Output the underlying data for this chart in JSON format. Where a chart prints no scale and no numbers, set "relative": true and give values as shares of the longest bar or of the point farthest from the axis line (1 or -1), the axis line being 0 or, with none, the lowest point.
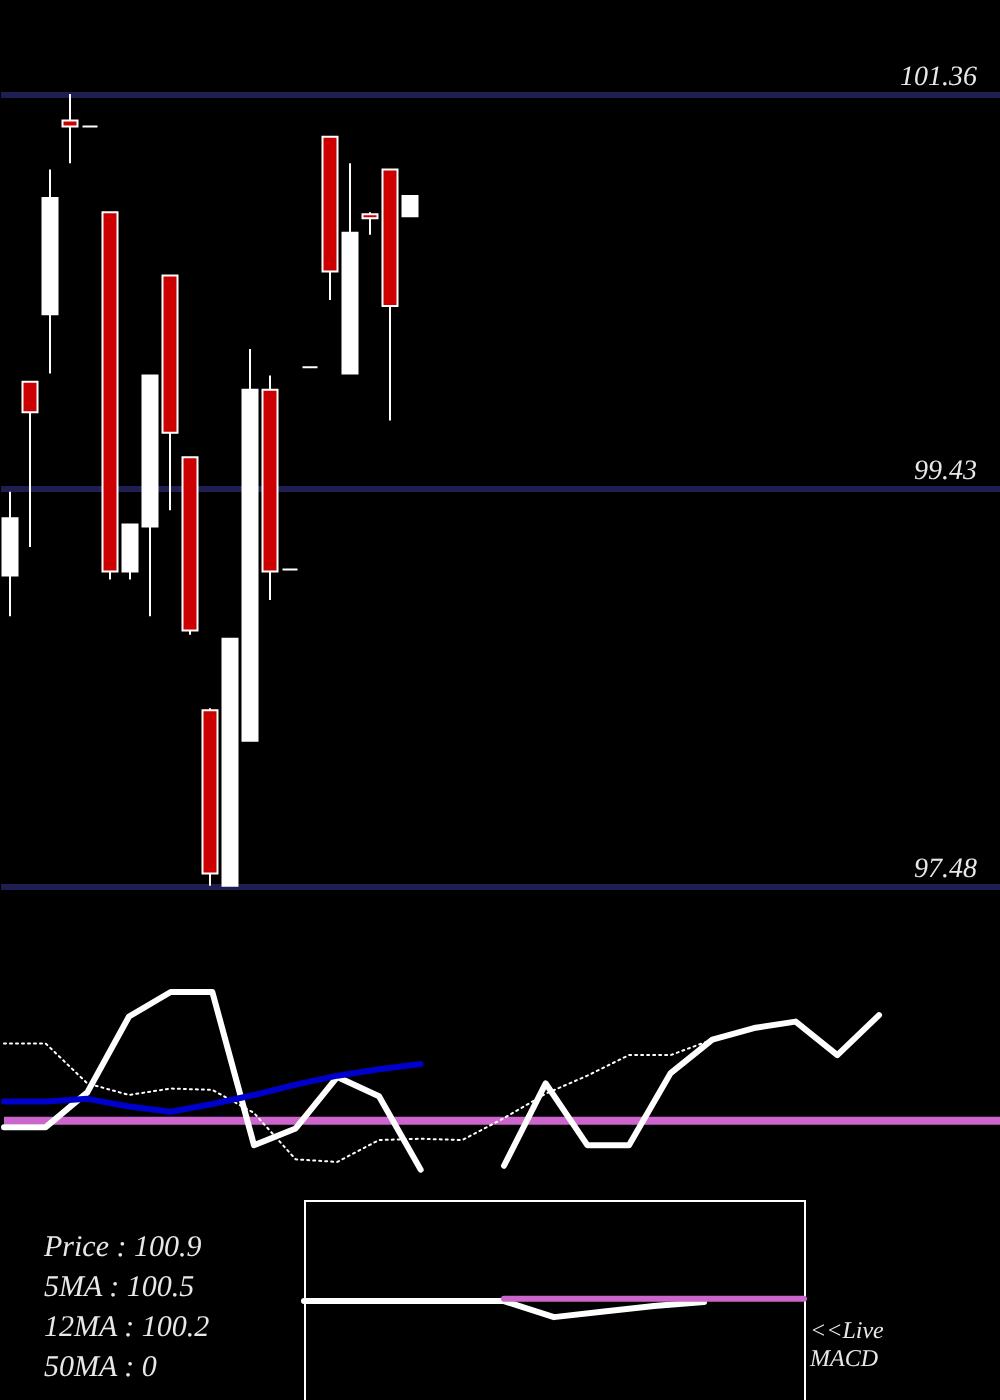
{
  "chart_data": [
    {
      "type": "candlestick",
      "categories": [
        null,
        null,
        null,
        null,
        null,
        null,
        null,
        null,
        null,
        null,
        null,
        null,
        null,
        null,
        null,
        null,
        null,
        null,
        null,
        null,
        null,
        null,
        null,
        null,
        null,
        null,
        null,
        null,
        null,
        null,
        null,
        null,
        null,
        null,
        null,
        null,
        null,
        null,
        null,
        null,
        null,
        null,
        null,
        null,
        null,
        null,
        null,
        null,
        null,
        null
      ],
      "ohlc": [
        [
          99.0,
          99.41,
          98.8,
          99.28
        ],
        [
          99.95,
          99.95,
          99.14,
          99.8
        ],
        [
          100.28,
          100.99,
          99.99,
          100.85
        ],
        [
          101.23,
          101.36,
          101.02,
          101.2
        ],
        [
          101.2,
          101.2,
          101.2,
          101.2
        ],
        [
          100.78,
          100.78,
          98.98,
          99.02
        ],
        [
          99.02,
          99.25,
          98.98,
          99.25
        ],
        [
          99.24,
          99.98,
          98.8,
          99.98
        ],
        [
          100.47,
          100.47,
          99.32,
          99.7
        ],
        [
          99.58,
          99.58,
          98.71,
          98.73
        ],
        [
          98.34,
          98.35,
          97.48,
          97.54
        ],
        [
          97.48,
          98.69,
          97.48,
          98.69
        ],
        [
          98.19,
          100.11,
          98.19,
          99.91
        ],
        [
          99.91,
          99.98,
          98.88,
          99.02
        ],
        [
          99.03,
          99.03,
          99.03,
          99.03
        ],
        [
          100.02,
          100.02,
          100.02,
          100.02
        ],
        [
          101.15,
          101.15,
          100.35,
          100.49
        ],
        [
          99.99,
          101.02,
          99.99,
          100.68
        ],
        [
          100.77,
          100.78,
          100.67,
          100.75
        ],
        [
          100.99,
          100.99,
          99.76,
          100.32
        ],
        [
          100.76,
          100.86,
          100.76,
          100.86
        ],
        null,
        null,
        null,
        null,
        null,
        null,
        null,
        null,
        null,
        null,
        null,
        null,
        null,
        null,
        null,
        null,
        null,
        null,
        null,
        null,
        null,
        null,
        null,
        null,
        null,
        null,
        null,
        null,
        null
      ],
      "colors": [
        "#ffffff",
        "#cc0000",
        "#ffffff",
        "#cc0000",
        "#ffffff",
        "#cc0000",
        "#ffffff",
        "#ffffff",
        "#cc0000",
        "#cc0000",
        "#cc0000",
        "#ffffff",
        "#ffffff",
        "#cc0000",
        "#ffffff",
        "#ffffff",
        "#cc0000",
        "#ffffff",
        "#cc0000",
        "#cc0000",
        "#ffffff",
        null,
        null,
        null,
        null,
        null,
        null,
        null,
        null,
        null,
        null,
        null,
        null,
        null,
        null,
        null,
        null,
        null,
        null,
        null,
        null,
        null,
        null,
        null,
        null,
        null,
        null,
        null,
        null,
        null
      ],
      "ylim": [
        97.41,
        101.82
      ],
      "yticks": [
        97.48,
        99.43,
        101.36
      ],
      "grid": "y",
      "tick_labels": "y"
    },
    {
      "type": "line",
      "relative": true,
      "categories": [
        null,
        null,
        null,
        null,
        null,
        null,
        null,
        null,
        null,
        null,
        null,
        null,
        null,
        null,
        null,
        null,
        null,
        null,
        null,
        null,
        null,
        null,
        null,
        null,
        null
      ],
      "series": [
        {
          "color": "#ffffff",
          "values": [
            -0.05,
            -0.05,
            0.22,
            0.81,
            1,
            1,
            -0.19,
            -0.06,
            0.34,
            0.19,
            -0.38,
            null,
            -0.35,
            0.29,
            -0.19,
            -0.19,
            0.37,
            0.63,
            0.72,
            0.77,
            0.51,
            0.82,
            null,
            null,
            null
          ]
        },
        {
          "color": "#ffffff",
          "line_style": "dotted",
          "values": [
            0.6,
            0.6,
            0.29,
            0.2,
            0.25,
            0.24,
            0.06,
            -0.3,
            -0.32,
            -0.15,
            -0.14,
            -0.15,
            0.02,
            0.21,
            0.35,
            0.51,
            0.51,
            0.63,
            null,
            null,
            null,
            null,
            null,
            null,
            null
          ]
        },
        {
          "color": "#0000cc",
          "values": [
            0.15,
            0.15,
            0.17,
            0.11,
            0.07,
            0.13,
            0.2,
            0.28,
            0.35,
            0.4,
            0.44,
            null,
            null,
            null,
            null,
            null,
            null,
            null,
            null,
            null,
            null,
            null,
            null,
            null,
            null
          ]
        }
      ],
      "ref_lines": [
        {
          "axis": "y",
          "value": 0,
          "color": "#cc66cc"
        }
      ],
      "annotations": [
        "Price : 100.9",
        "5MA : 100.5",
        "12MA : 100.2",
        "50MA : 0"
      ]
    },
    {
      "type": "line",
      "relative": true,
      "categories": [
        null,
        null,
        null,
        null,
        null,
        null,
        null,
        null,
        null,
        null,
        null
      ],
      "series": [
        {
          "color": "#ffffff",
          "values": [
            0.87,
            0.87,
            0.87,
            0.87,
            0.87,
            0,
            0.3,
            0.6,
            0.82,
            null,
            null
          ]
        },
        {
          "color": "#cc66cc",
          "values": [
            null,
            null,
            null,
            null,
            1,
            1,
            1,
            1,
            1,
            1,
            1
          ]
        }
      ],
      "annotations": [
        "<<Live MACD"
      ]
    }
  ]
}
